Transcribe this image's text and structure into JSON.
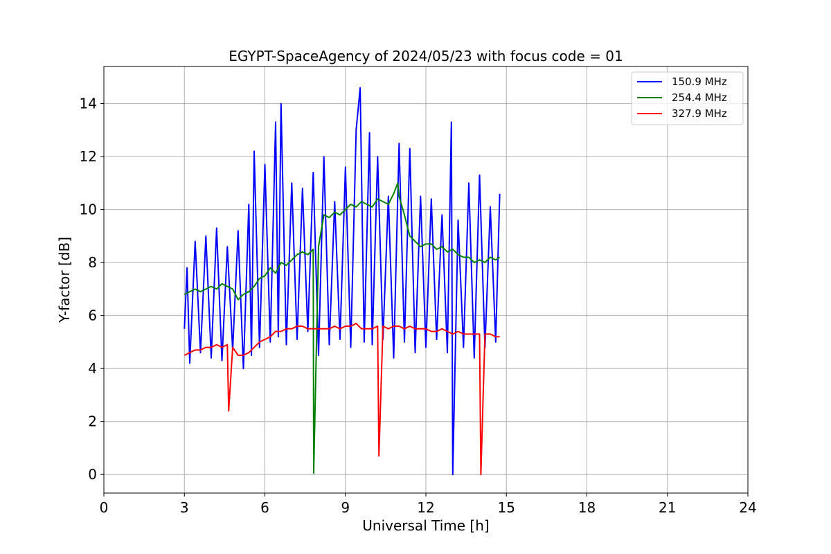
{
  "chart_data": {
    "type": "line",
    "title": "EGYPT-SpaceAgency of 2024/05/23 with focus code = 01",
    "xlabel": "Universal Time [h]",
    "ylabel": "Y-factor [dB]",
    "xlim": [
      0,
      24
    ],
    "ylim": [
      -0.7,
      15.4
    ],
    "xticks": [
      0,
      3,
      6,
      9,
      12,
      15,
      18,
      21,
      24
    ],
    "yticks": [
      0,
      2,
      4,
      6,
      8,
      10,
      12,
      14
    ],
    "grid": true,
    "legend_position": "top-right",
    "series": [
      {
        "name": "150.9 MHz",
        "color": "#0000ff",
        "x": [
          3.0,
          3.1,
          3.2,
          3.4,
          3.6,
          3.8,
          4.0,
          4.2,
          4.4,
          4.6,
          4.8,
          5.0,
          5.2,
          5.4,
          5.5,
          5.6,
          5.8,
          6.0,
          6.2,
          6.4,
          6.5,
          6.6,
          6.8,
          7.0,
          7.2,
          7.4,
          7.6,
          7.8,
          8.0,
          8.2,
          8.4,
          8.6,
          8.8,
          9.0,
          9.2,
          9.4,
          9.55,
          9.7,
          9.9,
          10.0,
          10.2,
          10.4,
          10.6,
          10.8,
          11.0,
          11.2,
          11.4,
          11.6,
          11.8,
          12.0,
          12.2,
          12.4,
          12.6,
          12.8,
          12.95,
          13.0,
          13.2,
          13.4,
          13.6,
          13.8,
          14.0,
          14.2,
          14.4,
          14.6,
          14.75
        ],
        "y": [
          5.5,
          7.8,
          4.2,
          8.8,
          4.6,
          9.0,
          4.4,
          9.3,
          4.3,
          8.6,
          4.7,
          9.2,
          4.0,
          10.2,
          4.5,
          12.2,
          4.8,
          11.7,
          5.0,
          13.3,
          5.2,
          14.0,
          4.9,
          11.0,
          5.1,
          10.8,
          5.4,
          11.4,
          4.5,
          12.0,
          4.9,
          10.3,
          5.1,
          11.6,
          4.8,
          13.0,
          14.6,
          5.0,
          12.9,
          4.9,
          12.0,
          5.1,
          10.5,
          4.4,
          12.5,
          5.0,
          12.3,
          4.6,
          10.5,
          4.8,
          10.4,
          5.1,
          9.8,
          4.6,
          13.3,
          0.0,
          9.6,
          4.8,
          11.0,
          4.4,
          11.3,
          4.8,
          10.1,
          5.0,
          10.6
        ]
      },
      {
        "name": "254.4 MHz",
        "color": "#008000",
        "x": [
          3.0,
          3.2,
          3.4,
          3.6,
          3.8,
          4.0,
          4.2,
          4.4,
          4.6,
          4.8,
          5.0,
          5.2,
          5.4,
          5.6,
          5.8,
          6.0,
          6.2,
          6.4,
          6.6,
          6.8,
          7.0,
          7.2,
          7.4,
          7.6,
          7.8,
          7.82,
          8.0,
          8.2,
          8.4,
          8.6,
          8.8,
          9.0,
          9.2,
          9.4,
          9.6,
          9.8,
          10.0,
          10.2,
          10.4,
          10.6,
          10.8,
          10.95,
          11.0,
          11.2,
          11.4,
          11.6,
          11.8,
          12.0,
          12.2,
          12.4,
          12.6,
          12.8,
          13.0,
          13.2,
          13.4,
          13.6,
          13.8,
          14.0,
          14.2,
          14.4,
          14.6,
          14.75
        ],
        "y": [
          6.8,
          6.9,
          7.0,
          6.9,
          7.0,
          7.1,
          7.0,
          7.2,
          7.1,
          7.0,
          6.6,
          6.8,
          6.9,
          7.1,
          7.4,
          7.5,
          7.8,
          7.6,
          8.0,
          7.9,
          8.1,
          8.3,
          8.4,
          8.3,
          8.5,
          0.05,
          8.6,
          9.8,
          9.7,
          9.9,
          9.8,
          10.0,
          10.2,
          10.1,
          10.3,
          10.2,
          10.1,
          10.4,
          10.3,
          10.2,
          10.6,
          11.0,
          10.5,
          9.8,
          9.0,
          8.8,
          8.6,
          8.7,
          8.7,
          8.5,
          8.6,
          8.4,
          8.5,
          8.3,
          8.2,
          8.2,
          8.0,
          8.1,
          8.0,
          8.2,
          8.1,
          8.2
        ]
      },
      {
        "name": "327.9 MHz",
        "color": "#ff0000",
        "x": [
          3.0,
          3.2,
          3.4,
          3.6,
          3.8,
          4.0,
          4.2,
          4.4,
          4.6,
          4.65,
          4.8,
          5.0,
          5.2,
          5.4,
          5.6,
          5.8,
          6.0,
          6.2,
          6.4,
          6.6,
          6.8,
          7.0,
          7.2,
          7.4,
          7.6,
          7.8,
          8.0,
          8.2,
          8.4,
          8.6,
          8.8,
          9.0,
          9.2,
          9.4,
          9.6,
          9.8,
          10.0,
          10.2,
          10.25,
          10.4,
          10.6,
          10.8,
          11.0,
          11.2,
          11.4,
          11.6,
          11.8,
          12.0,
          12.2,
          12.4,
          12.6,
          12.8,
          13.0,
          13.2,
          13.4,
          13.6,
          13.8,
          14.0,
          14.05,
          14.2,
          14.4,
          14.6,
          14.75
        ],
        "y": [
          4.5,
          4.6,
          4.7,
          4.7,
          4.8,
          4.8,
          4.9,
          4.8,
          4.9,
          2.4,
          4.8,
          4.5,
          4.5,
          4.6,
          4.8,
          5.0,
          5.1,
          5.2,
          5.4,
          5.4,
          5.5,
          5.5,
          5.6,
          5.6,
          5.5,
          5.5,
          5.5,
          5.5,
          5.5,
          5.6,
          5.5,
          5.6,
          5.6,
          5.7,
          5.5,
          5.5,
          5.5,
          5.6,
          0.7,
          5.6,
          5.5,
          5.6,
          5.6,
          5.5,
          5.6,
          5.5,
          5.5,
          5.5,
          5.4,
          5.4,
          5.5,
          5.4,
          5.3,
          5.4,
          5.3,
          5.3,
          5.3,
          5.3,
          0.0,
          5.3,
          5.3,
          5.2,
          5.2
        ]
      }
    ]
  }
}
